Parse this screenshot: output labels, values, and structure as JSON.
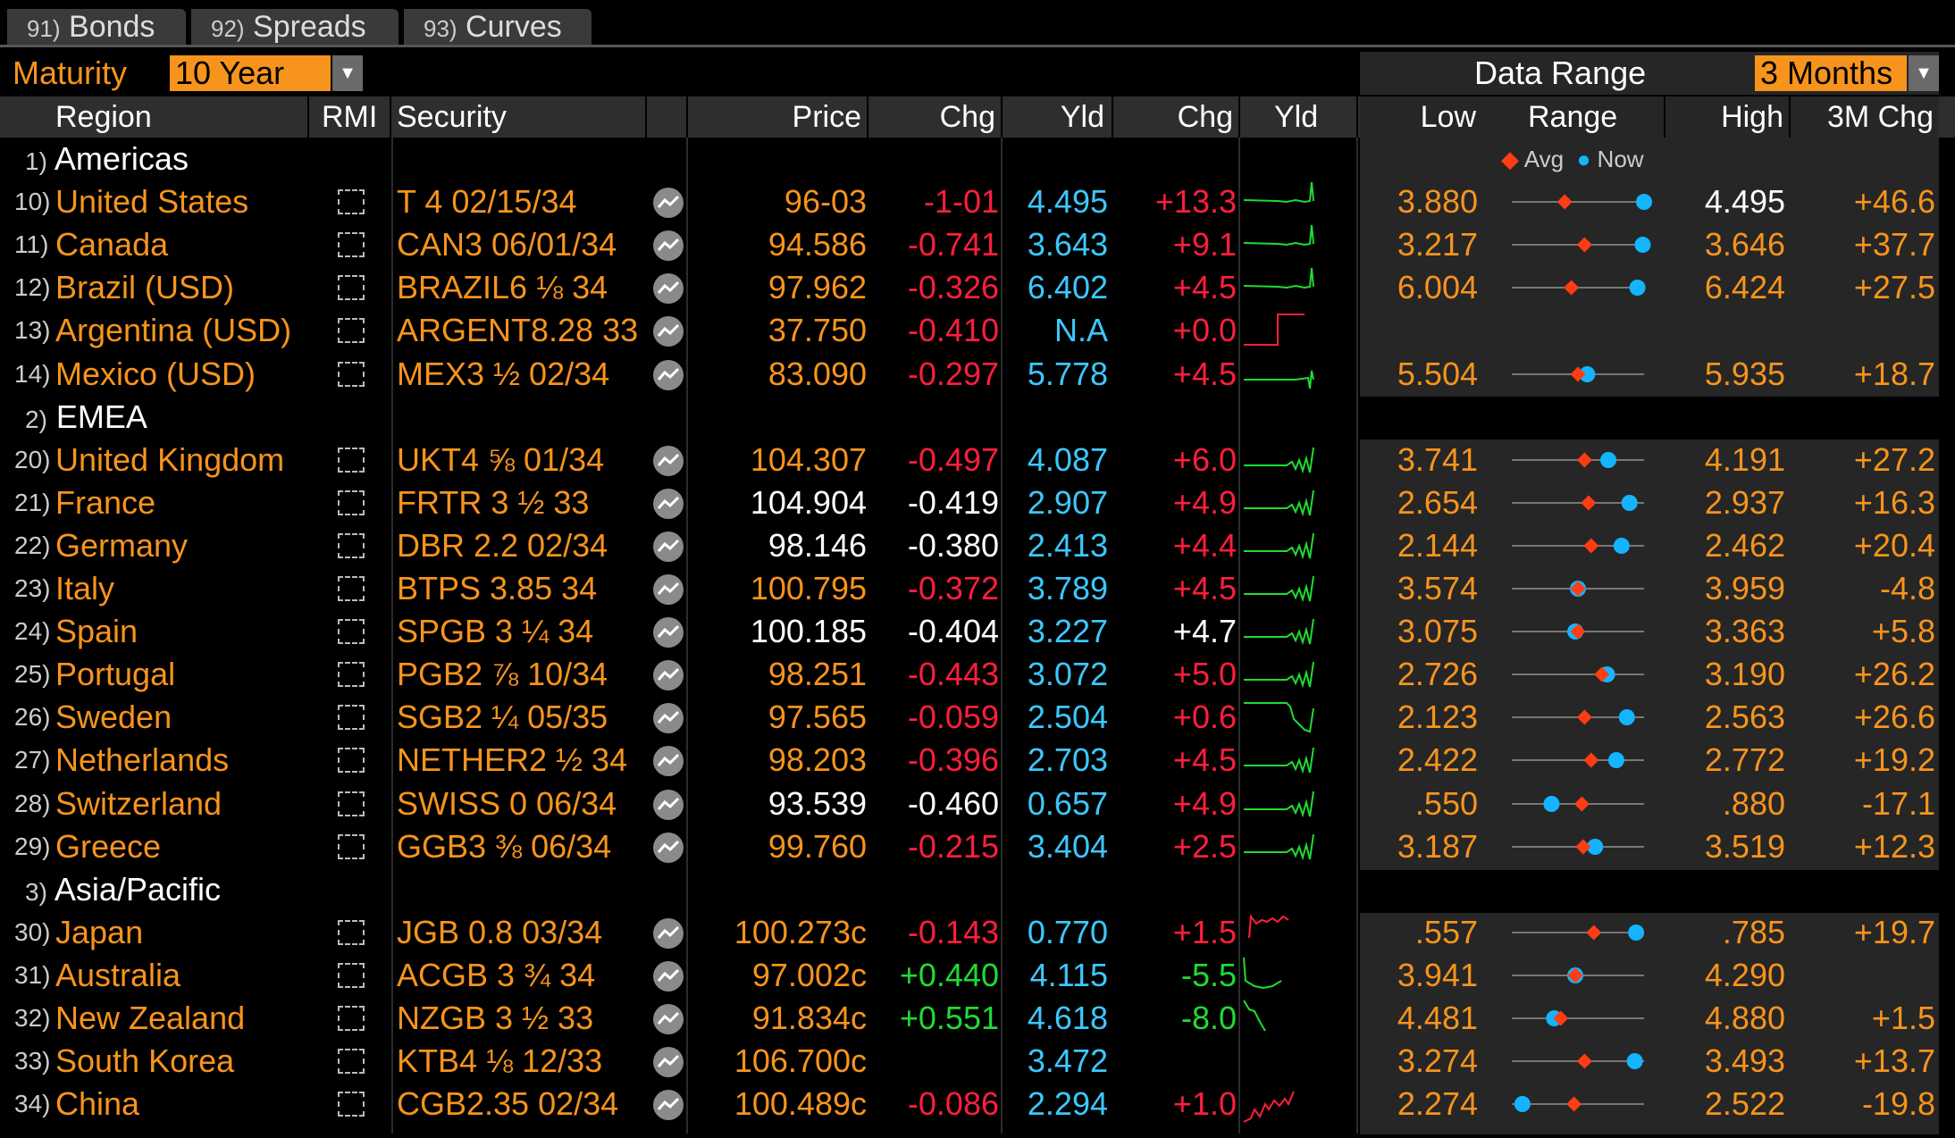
{
  "tabs": [
    {
      "num": "91)",
      "label": "Bonds"
    },
    {
      "num": "92)",
      "label": "Spreads"
    },
    {
      "num": "93)",
      "label": "Curves"
    }
  ],
  "controls": {
    "maturity_label": "Maturity",
    "maturity_value": "10 Year",
    "data_range_label": "Data Range",
    "data_range_value": "3 Months"
  },
  "columns": {
    "region": "Region",
    "rmi": "RMI",
    "security": "Security",
    "price": "Price",
    "chg": "Chg",
    "yld": "Yld",
    "ychg": "Chg",
    "spark": "Yld",
    "low": "Low",
    "range": "Range",
    "high": "High",
    "chg3m": "3M Chg"
  },
  "legend": {
    "avg": "Avg",
    "now": "Now"
  },
  "colors": {
    "orange": "#f7941d",
    "red": "#ff1e3c",
    "green": "#1edc32",
    "cyan": "#3cc8ff",
    "avg_marker": "#ff3c14",
    "now_marker": "#14b4ff"
  },
  "groups": [
    {
      "num": "1)",
      "label": "Americas"
    },
    {
      "num": "2)",
      "label": "EMEA"
    },
    {
      "num": "3)",
      "label": "Asia/Pacific"
    }
  ],
  "rows": [
    {
      "num": "10)",
      "region": "United States",
      "security": "T 4 02/15/34",
      "price": "96-03",
      "price_color": "orange",
      "chg": "-1-01",
      "chg_color": "red",
      "yld": "4.495",
      "ychg": "+13.3",
      "ychg_color": "red",
      "low": "3.880",
      "high": "4.495",
      "high_color": "white",
      "chg3m": "+46.6",
      "avg": 0.4,
      "now": 1.0,
      "spark": "rise"
    },
    {
      "num": "11)",
      "region": "Canada",
      "security": "CAN3 06/01/34",
      "price": "94.586",
      "price_color": "orange",
      "chg": "-0.741",
      "chg_color": "red",
      "yld": "3.643",
      "ychg": "+9.1",
      "ychg_color": "red",
      "low": "3.217",
      "high": "3.646",
      "high_color": "orange",
      "chg3m": "+37.7",
      "avg": 0.55,
      "now": 0.99,
      "spark": "rise"
    },
    {
      "num": "12)",
      "region": "Brazil (USD)",
      "security": "BRAZIL6 ⅛ 34",
      "price": "97.962",
      "price_color": "orange",
      "chg": "-0.326",
      "chg_color": "red",
      "yld": "6.402",
      "ychg": "+4.5",
      "ychg_color": "red",
      "low": "6.004",
      "high": "6.424",
      "high_color": "orange",
      "chg3m": "+27.5",
      "avg": 0.45,
      "now": 0.95,
      "spark": "rise"
    },
    {
      "num": "13)",
      "region": "Argentina (USD)",
      "security": "ARGENT8.28 33",
      "price": "37.750",
      "price_color": "orange",
      "chg": "-0.410",
      "chg_color": "red",
      "yld": "N.A",
      "ychg": "+0.0",
      "ychg_color": "red",
      "low": "",
      "high": "",
      "high_color": "orange",
      "chg3m": "",
      "avg": null,
      "now": null,
      "spark": "step"
    },
    {
      "num": "14)",
      "region": "Mexico (USD)",
      "security": "MEX3 ½ 02/34",
      "price": "83.090",
      "price_color": "orange",
      "chg": "-0.297",
      "chg_color": "red",
      "yld": "5.778",
      "ychg": "+4.5",
      "ychg_color": "red",
      "low": "5.504",
      "high": "5.935",
      "high_color": "orange",
      "chg3m": "+18.7",
      "avg": 0.5,
      "now": 0.57,
      "spark": "flat"
    },
    {
      "num": "20)",
      "region": "United Kingdom",
      "security": "UKT4 ⅝ 01/34",
      "price": "104.307",
      "price_color": "orange",
      "chg": "-0.497",
      "chg_color": "red",
      "yld": "4.087",
      "ychg": "+6.0",
      "ychg_color": "red",
      "low": "3.741",
      "high": "4.191",
      "high_color": "orange",
      "chg3m": "+27.2",
      "avg": 0.55,
      "now": 0.73,
      "spark": "wave"
    },
    {
      "num": "21)",
      "region": "France",
      "security": "FRTR 3 ½ 33",
      "price": "104.904",
      "price_color": "white",
      "chg": "-0.419",
      "chg_color": "white",
      "yld": "2.907",
      "ychg": "+4.9",
      "ychg_color": "red",
      "low": "2.654",
      "high": "2.937",
      "high_color": "orange",
      "chg3m": "+16.3",
      "avg": 0.58,
      "now": 0.89,
      "spark": "wave"
    },
    {
      "num": "22)",
      "region": "Germany",
      "security": "DBR 2.2 02/34",
      "price": "98.146",
      "price_color": "white",
      "chg": "-0.380",
      "chg_color": "white",
      "yld": "2.413",
      "ychg": "+4.4",
      "ychg_color": "red",
      "low": "2.144",
      "high": "2.462",
      "high_color": "orange",
      "chg3m": "+20.4",
      "avg": 0.6,
      "now": 0.83,
      "spark": "wave"
    },
    {
      "num": "23)",
      "region": "Italy",
      "security": "BTPS 3.85 34",
      "price": "100.795",
      "price_color": "orange",
      "chg": "-0.372",
      "chg_color": "red",
      "yld": "3.789",
      "ychg": "+4.5",
      "ychg_color": "red",
      "low": "3.574",
      "high": "3.959",
      "high_color": "orange",
      "chg3m": "-4.8",
      "avg": 0.5,
      "now": 0.5,
      "spark": "wave"
    },
    {
      "num": "24)",
      "region": "Spain",
      "security": "SPGB 3 ¼ 34",
      "price": "100.185",
      "price_color": "white",
      "chg": "-0.404",
      "chg_color": "white",
      "yld": "3.227",
      "ychg": "+4.7",
      "ychg_color": "white",
      "low": "3.075",
      "high": "3.363",
      "high_color": "orange",
      "chg3m": "+5.8",
      "avg": 0.5,
      "now": 0.48,
      "spark": "wave"
    },
    {
      "num": "25)",
      "region": "Portugal",
      "security": "PGB2 ⅞ 10/34",
      "price": "98.251",
      "price_color": "orange",
      "chg": "-0.443",
      "chg_color": "red",
      "yld": "3.072",
      "ychg": "+5.0",
      "ychg_color": "red",
      "low": "2.726",
      "high": "3.190",
      "high_color": "orange",
      "chg3m": "+26.2",
      "avg": 0.68,
      "now": 0.72,
      "spark": "wave"
    },
    {
      "num": "26)",
      "region": "Sweden",
      "security": "SGB2 ¼ 05/35",
      "price": "97.565",
      "price_color": "orange",
      "chg": "-0.059",
      "chg_color": "red",
      "yld": "2.504",
      "ychg": "+0.6",
      "ychg_color": "red",
      "low": "2.123",
      "high": "2.563",
      "high_color": "orange",
      "chg3m": "+26.6",
      "avg": 0.55,
      "now": 0.87,
      "spark": "drop"
    },
    {
      "num": "27)",
      "region": "Netherlands",
      "security": "NETHER2 ½ 34",
      "price": "98.203",
      "price_color": "orange",
      "chg": "-0.396",
      "chg_color": "red",
      "yld": "2.703",
      "ychg": "+4.5",
      "ychg_color": "red",
      "low": "2.422",
      "high": "2.772",
      "high_color": "orange",
      "chg3m": "+19.2",
      "avg": 0.6,
      "now": 0.79,
      "spark": "wave"
    },
    {
      "num": "28)",
      "region": "Switzerland",
      "security": "SWISS 0 06/34",
      "price": "93.539",
      "price_color": "white",
      "chg": "-0.460",
      "chg_color": "white",
      "yld": "0.657",
      "ychg": "+4.9",
      "ychg_color": "red",
      "low": ".550",
      "high": ".880",
      "high_color": "orange",
      "chg3m": "-17.1",
      "avg": 0.53,
      "now": 0.3,
      "spark": "wave"
    },
    {
      "num": "29)",
      "region": "Greece",
      "security": "GGB3 ⅜ 06/34",
      "price": "99.760",
      "price_color": "orange",
      "chg": "-0.215",
      "chg_color": "red",
      "yld": "3.404",
      "ychg": "+2.5",
      "ychg_color": "red",
      "low": "3.187",
      "high": "3.519",
      "high_color": "orange",
      "chg3m": "+12.3",
      "avg": 0.54,
      "now": 0.63,
      "spark": "wave"
    },
    {
      "num": "30)",
      "region": "Japan",
      "security": "JGB 0.8 03/34",
      "price": "100.273c",
      "price_color": "orange",
      "chg": "-0.143",
      "chg_color": "red",
      "yld": "0.770",
      "ychg": "+1.5",
      "ychg_color": "red",
      "low": ".557",
      "high": ".785",
      "high_color": "orange",
      "chg3m": "+19.7",
      "avg": 0.62,
      "now": 0.94,
      "spark": "top"
    },
    {
      "num": "31)",
      "region": "Australia",
      "security": "ACGB 3 ¾ 34",
      "price": "97.002c",
      "price_color": "orange",
      "chg": "+0.440",
      "chg_color": "green",
      "yld": "4.115",
      "ychg": "-5.5",
      "ychg_color": "green",
      "low": "3.941",
      "high": "4.290",
      "high_color": "orange",
      "chg3m": "",
      "avg": 0.48,
      "now": 0.48,
      "spark": "fall"
    },
    {
      "num": "32)",
      "region": "New Zealand",
      "security": "NZGB 3 ½ 33",
      "price": "91.834c",
      "price_color": "orange",
      "chg": "+0.551",
      "chg_color": "green",
      "yld": "4.618",
      "ychg": "-8.0",
      "ychg_color": "green",
      "low": "4.481",
      "high": "4.880",
      "high_color": "orange",
      "chg3m": "+1.5",
      "avg": 0.37,
      "now": 0.32,
      "spark": "fall2"
    },
    {
      "num": "33)",
      "region": "South Korea",
      "security": "KTB4 ⅛ 12/33",
      "price": "106.700c",
      "price_color": "orange",
      "chg": "",
      "chg_color": "red",
      "yld": "3.472",
      "ychg": "",
      "ychg_color": "red",
      "low": "3.274",
      "high": "3.493",
      "high_color": "orange",
      "chg3m": "+13.7",
      "avg": 0.55,
      "now": 0.93,
      "spark": "none"
    },
    {
      "num": "34)",
      "region": "China",
      "security": "CGB2.35 02/34",
      "price": "100.489c",
      "price_color": "orange",
      "chg": "-0.086",
      "chg_color": "red",
      "yld": "2.294",
      "ychg": "+1.0",
      "ychg_color": "red",
      "low": "2.274",
      "high": "2.522",
      "high_color": "orange",
      "chg3m": "-19.8",
      "avg": 0.47,
      "now": 0.08,
      "spark": "jag"
    }
  ]
}
